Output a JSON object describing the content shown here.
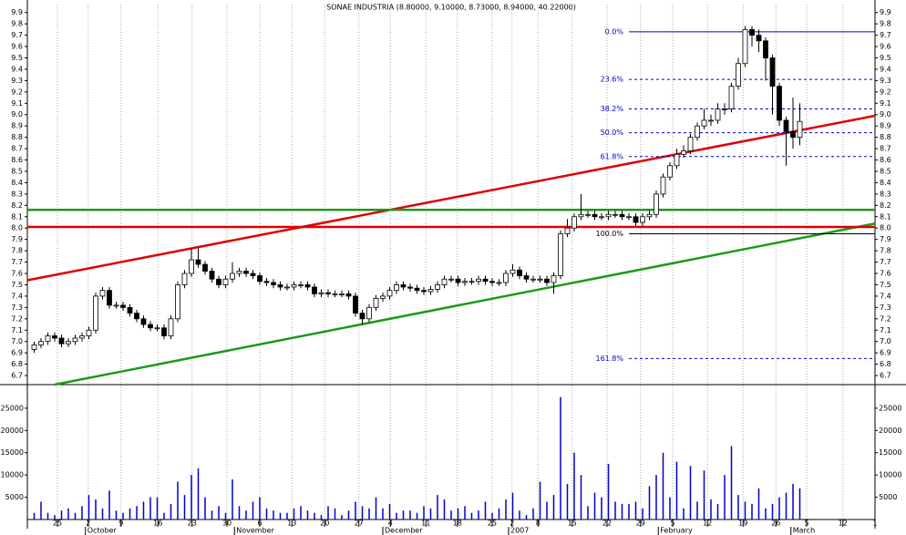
{
  "chart_data": {
    "type": "candlestick",
    "title": "SONAE INDUSTRIA (8.80000, 9.10000, 8.73000, 8.94000, 40.22000)",
    "open": [
      6.93,
      6.97,
      7.0,
      7.05,
      7.03,
      6.98,
      7.0,
      7.03,
      7.05,
      7.1,
      7.4,
      7.45,
      7.32,
      7.32,
      7.3,
      7.25,
      7.2,
      7.15,
      7.12,
      7.12,
      7.05,
      7.2,
      7.5,
      7.6,
      7.72,
      7.68,
      7.62,
      7.55,
      7.5,
      7.55,
      7.6,
      7.62,
      7.6,
      7.58,
      7.53,
      7.52,
      7.5,
      7.48,
      7.48,
      7.5,
      7.5,
      7.48,
      7.42,
      7.43,
      7.42,
      7.42,
      7.42,
      7.4,
      7.25,
      7.2,
      7.3,
      7.38,
      7.4,
      7.45,
      7.5,
      7.48,
      7.47,
      7.45,
      7.44,
      7.46,
      7.5,
      7.55,
      7.55,
      7.52,
      7.53,
      7.53,
      7.55,
      7.53,
      7.52,
      7.52,
      7.6,
      7.63,
      7.58,
      7.55,
      7.55,
      7.55,
      7.52,
      7.58,
      7.95,
      8.0,
      8.1,
      8.12,
      8.12,
      8.1,
      8.1,
      8.12,
      8.12,
      8.1,
      8.1,
      8.05,
      8.1,
      8.12,
      8.3,
      8.45,
      8.55,
      8.65,
      8.68,
      8.8,
      8.9,
      8.95,
      8.95,
      9.05,
      9.05,
      9.25,
      9.45,
      9.75,
      9.7,
      9.65,
      9.5,
      9.25,
      8.95,
      8.85,
      8.8
    ],
    "high": [
      7.0,
      7.03,
      7.08,
      7.08,
      7.06,
      7.03,
      7.06,
      7.08,
      7.13,
      7.43,
      7.48,
      7.48,
      7.35,
      7.35,
      7.33,
      7.28,
      7.23,
      7.18,
      7.15,
      7.15,
      7.23,
      7.53,
      7.63,
      7.82,
      7.82,
      7.71,
      7.65,
      7.58,
      7.58,
      7.7,
      7.65,
      7.65,
      7.63,
      7.61,
      7.56,
      7.55,
      7.53,
      7.51,
      7.53,
      7.53,
      7.53,
      7.51,
      7.46,
      7.46,
      7.45,
      7.45,
      7.45,
      7.43,
      7.28,
      7.33,
      7.41,
      7.43,
      7.48,
      7.53,
      7.53,
      7.51,
      7.5,
      7.48,
      7.49,
      7.53,
      7.58,
      7.58,
      7.58,
      7.56,
      7.56,
      7.58,
      7.58,
      7.56,
      7.55,
      7.63,
      7.68,
      7.66,
      7.61,
      7.58,
      7.58,
      7.58,
      7.61,
      7.98,
      8.08,
      8.13,
      8.3,
      8.15,
      8.15,
      8.13,
      8.15,
      8.15,
      8.15,
      8.13,
      8.13,
      8.13,
      8.15,
      8.33,
      8.48,
      8.58,
      8.7,
      8.73,
      8.83,
      8.93,
      9.05,
      9.0,
      9.1,
      9.1,
      9.28,
      9.5,
      9.78,
      9.78,
      9.75,
      9.68,
      9.53,
      9.28,
      8.98,
      9.15,
      9.1
    ],
    "low": [
      6.9,
      6.94,
      6.97,
      7.0,
      6.95,
      6.95,
      6.97,
      7.0,
      7.02,
      7.07,
      7.37,
      7.29,
      7.29,
      7.27,
      7.22,
      7.17,
      7.12,
      7.09,
      7.09,
      7.02,
      7.02,
      7.17,
      7.47,
      7.57,
      7.65,
      7.59,
      7.52,
      7.47,
      7.47,
      7.52,
      7.57,
      7.57,
      7.55,
      7.5,
      7.49,
      7.47,
      7.45,
      7.45,
      7.45,
      7.47,
      7.45,
      7.39,
      7.39,
      7.39,
      7.39,
      7.39,
      7.37,
      7.22,
      7.15,
      7.17,
      7.27,
      7.35,
      7.37,
      7.42,
      7.45,
      7.44,
      7.42,
      7.41,
      7.41,
      7.43,
      7.47,
      7.52,
      7.49,
      7.49,
      7.5,
      7.5,
      7.5,
      7.49,
      7.49,
      7.49,
      7.57,
      7.55,
      7.52,
      7.52,
      7.52,
      7.49,
      7.42,
      7.55,
      7.92,
      7.97,
      8.07,
      8.09,
      8.07,
      8.07,
      8.07,
      8.09,
      8.07,
      8.07,
      8.02,
      8.02,
      8.07,
      8.09,
      8.27,
      8.42,
      8.52,
      8.62,
      8.65,
      8.77,
      8.87,
      8.9,
      8.92,
      9.0,
      9.02,
      9.22,
      9.42,
      9.6,
      9.55,
      9.3,
      9.0,
      8.9,
      8.55,
      8.7,
      8.73
    ],
    "close": [
      6.97,
      7.0,
      7.05,
      7.03,
      6.98,
      7.0,
      7.03,
      7.05,
      7.1,
      7.4,
      7.45,
      7.32,
      7.32,
      7.3,
      7.25,
      7.2,
      7.15,
      7.12,
      7.12,
      7.05,
      7.2,
      7.5,
      7.6,
      7.72,
      7.68,
      7.62,
      7.55,
      7.5,
      7.55,
      7.6,
      7.62,
      7.6,
      7.58,
      7.53,
      7.52,
      7.5,
      7.48,
      7.48,
      7.5,
      7.5,
      7.48,
      7.42,
      7.43,
      7.42,
      7.42,
      7.42,
      7.4,
      7.25,
      7.2,
      7.3,
      7.38,
      7.4,
      7.45,
      7.5,
      7.48,
      7.47,
      7.45,
      7.44,
      7.46,
      7.5,
      7.55,
      7.55,
      7.52,
      7.53,
      7.53,
      7.55,
      7.53,
      7.52,
      7.52,
      7.6,
      7.63,
      7.58,
      7.55,
      7.55,
      7.55,
      7.52,
      7.58,
      7.95,
      8.0,
      8.1,
      8.12,
      8.12,
      8.1,
      8.1,
      8.12,
      8.12,
      8.1,
      8.1,
      8.05,
      8.1,
      8.12,
      8.3,
      8.45,
      8.55,
      8.65,
      8.68,
      8.8,
      8.9,
      8.95,
      8.95,
      9.05,
      9.05,
      9.25,
      9.45,
      9.75,
      9.7,
      9.65,
      9.5,
      9.25,
      8.95,
      8.85,
      8.8,
      8.94
    ],
    "volume": [
      1500,
      4000,
      1500,
      1000,
      2000,
      2500,
      1500,
      3000,
      5500,
      4500,
      2500,
      6500,
      2000,
      1500,
      2500,
      3000,
      4000,
      5000,
      5000,
      1500,
      3500,
      8500,
      5500,
      10000,
      11500,
      5000,
      2000,
      3000,
      1500,
      9000,
      3000,
      2000,
      4000,
      5000,
      2500,
      2000,
      1500,
      1500,
      2500,
      3000,
      2000,
      1500,
      1000,
      3000,
      2500,
      1000,
      2000,
      4000,
      3000,
      2500,
      5000,
      2500,
      3500,
      1500,
      2000,
      2000,
      1500,
      3000,
      2500,
      5500,
      4500,
      2000,
      2500,
      3000,
      1500,
      2000,
      4000,
      1500,
      2500,
      4500,
      6000,
      2000,
      1000,
      2500,
      8500,
      4000,
      5500,
      27500,
      8000,
      15000,
      10000,
      3000,
      6000,
      5000,
      12500,
      4000,
      3500,
      3500,
      4000,
      2500,
      7500,
      10000,
      15000,
      5000,
      13000,
      2500,
      12000,
      4000,
      11000,
      4500,
      3500,
      10000,
      16500,
      5500,
      4000,
      3500,
      7000,
      2500,
      3500,
      5000,
      6000,
      8000,
      7000
    ],
    "up_color": "#ffffff",
    "down_color": "#000000",
    "volume_color": "#0000cc",
    "xlim": [
      -1,
      123
    ],
    "ylim": [
      6.62,
      9.97
    ],
    "yticks": [
      6.7,
      6.8,
      6.9,
      {
        "value": 7,
        "label": "7.0"
      },
      7.1,
      7.2,
      7.3,
      7.4,
      7.5,
      7.6,
      7.7,
      7.8,
      7.9,
      {
        "value": 8,
        "label": "8.0"
      },
      8.1,
      8.2,
      8.3,
      8.4,
      8.5,
      8.6,
      8.7,
      8.8,
      8.9,
      {
        "value": 9,
        "label": "9.0"
      },
      9.1,
      9.2,
      9.3,
      9.4,
      9.5,
      9.6,
      9.7,
      9.8,
      9.9
    ],
    "volume_ylim": [
      0,
      30300
    ],
    "volume_yticks": [
      5000,
      10000,
      15000,
      20000,
      25000
    ],
    "xticks": [
      {
        "value": 3.4,
        "label": "25"
      },
      {
        "value": 7.9,
        "label": "2"
      },
      {
        "value": 12.7,
        "label": "9"
      },
      {
        "value": 18.1,
        "label": "16"
      },
      {
        "value": 23.1,
        "label": "23"
      },
      {
        "value": 28.2,
        "label": "30"
      },
      {
        "value": 33,
        "label": "6"
      },
      {
        "value": 37.7,
        "label": "13"
      },
      {
        "value": 42.5,
        "label": "20"
      },
      {
        "value": 47.5,
        "label": "27"
      },
      {
        "value": 52.1,
        "label": "4"
      },
      {
        "value": 57.3,
        "label": "11"
      },
      {
        "value": 61.9,
        "label": "18"
      },
      {
        "value": 67,
        "label": "25"
      },
      {
        "value": 69.9,
        "label": "2"
      },
      {
        "value": 73.7,
        "label": "8"
      },
      {
        "value": 78.7,
        "label": "15"
      },
      {
        "value": 83.8,
        "label": "22"
      },
      {
        "value": 88.7,
        "label": "29"
      },
      {
        "value": 93.4,
        "label": "5"
      },
      {
        "value": 98.5,
        "label": "12"
      },
      {
        "value": 103.7,
        "label": "19"
      },
      {
        "value": 108.5,
        "label": "26"
      },
      {
        "value": 113,
        "label": "5"
      },
      {
        "value": 118.3,
        "label": "12"
      },
      {
        "value": 123,
        "label": "1"
      }
    ],
    "month_labels": [
      {
        "value": 7.5,
        "label": "October"
      },
      {
        "value": 29.3,
        "label": "November"
      },
      {
        "value": 51,
        "label": "December"
      },
      {
        "value": 69.4,
        "label": "2007"
      },
      {
        "value": 91.3,
        "label": "February"
      },
      {
        "value": 110.7,
        "label": "March"
      }
    ],
    "grid": true,
    "lines": [
      {
        "color": "#dd0000",
        "x": [
          -1,
          123
        ],
        "y": [
          7.54,
          8.99
        ]
      },
      {
        "color": "#1a9a1a",
        "x": [
          3,
          123
        ],
        "y": [
          6.62,
          8.04
        ]
      },
      {
        "color": "#1a9a1a",
        "x": [
          -1,
          123
        ],
        "y": [
          8.16,
          8.16
        ]
      },
      {
        "color": "#dd0000",
        "x": [
          -1,
          123
        ],
        "y": [
          8.01,
          8.01
        ]
      }
    ],
    "fib_x": [
      87,
      123
    ],
    "fib_levels": [
      {
        "label": "0.0%",
        "value": 9.73,
        "color": "#0000cc",
        "dashed": false
      },
      {
        "label": "23.6%",
        "value": 9.31,
        "color": "#0000cc",
        "dashed": true
      },
      {
        "label": "38.2%",
        "value": 9.05,
        "color": "#0000cc",
        "dashed": true
      },
      {
        "label": "50.0%",
        "value": 8.84,
        "color": "#0000cc",
        "dashed": true
      },
      {
        "label": "61.8%",
        "value": 8.63,
        "color": "#0000cc",
        "dashed": true
      },
      {
        "label": "100.0%",
        "value": 7.95,
        "color": "#000000",
        "dashed": false
      },
      {
        "label": "161.8%",
        "value": 6.85,
        "color": "#0000cc",
        "dashed": true
      }
    ]
  }
}
